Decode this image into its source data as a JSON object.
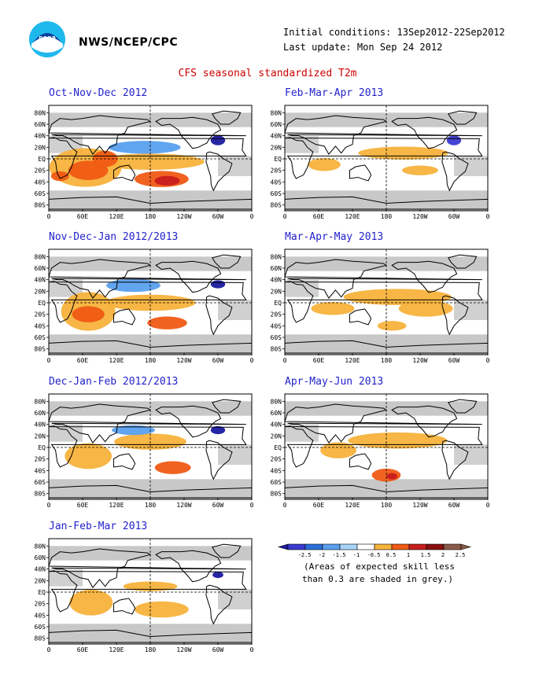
{
  "header": {
    "org": "NWS/NCEP/CPC",
    "initial_conditions": "Initial conditions: 13Sep2012-22Sep2012",
    "last_update": "Last update: Mon Sep 24 2012",
    "logo_text": "noaa"
  },
  "title": "CFS seasonal standardized T2m",
  "axes": {
    "lat_labels": [
      "80N",
      "60N",
      "40N",
      "20N",
      "EQ",
      "20S",
      "40S",
      "60S",
      "80S"
    ],
    "lon_labels": [
      "0",
      "60E",
      "120E",
      "180",
      "120W",
      "60W",
      "0"
    ]
  },
  "panels": [
    {
      "title": "Oct-Nov-Dec 2012"
    },
    {
      "title": "Feb-Mar-Apr 2013"
    },
    {
      "title": "Nov-Dec-Jan 2012/2013"
    },
    {
      "title": "Mar-Apr-May 2013"
    },
    {
      "title": "Dec-Jan-Feb 2012/2013"
    },
    {
      "title": "Apr-May-Jun 2013"
    },
    {
      "title": "Jan-Feb-Mar 2013"
    }
  ],
  "legend": {
    "levels": [
      "-2.5",
      "-2",
      "-1.5",
      "-1",
      "-0.5",
      "0.5",
      "1",
      "1.5",
      "2",
      "2.5"
    ],
    "colors": [
      "#1a1aa0",
      "#3a3ad0",
      "#2a6fd8",
      "#5aa0ee",
      "#a8d4f8",
      "#ffffff",
      "#f7b23b",
      "#f05a14",
      "#c81e1e",
      "#8a1010",
      "#8b5a4a"
    ],
    "note_line1": "(Areas of expected skill less",
    "note_line2": "than 0.3 are shaded in grey.)"
  }
}
